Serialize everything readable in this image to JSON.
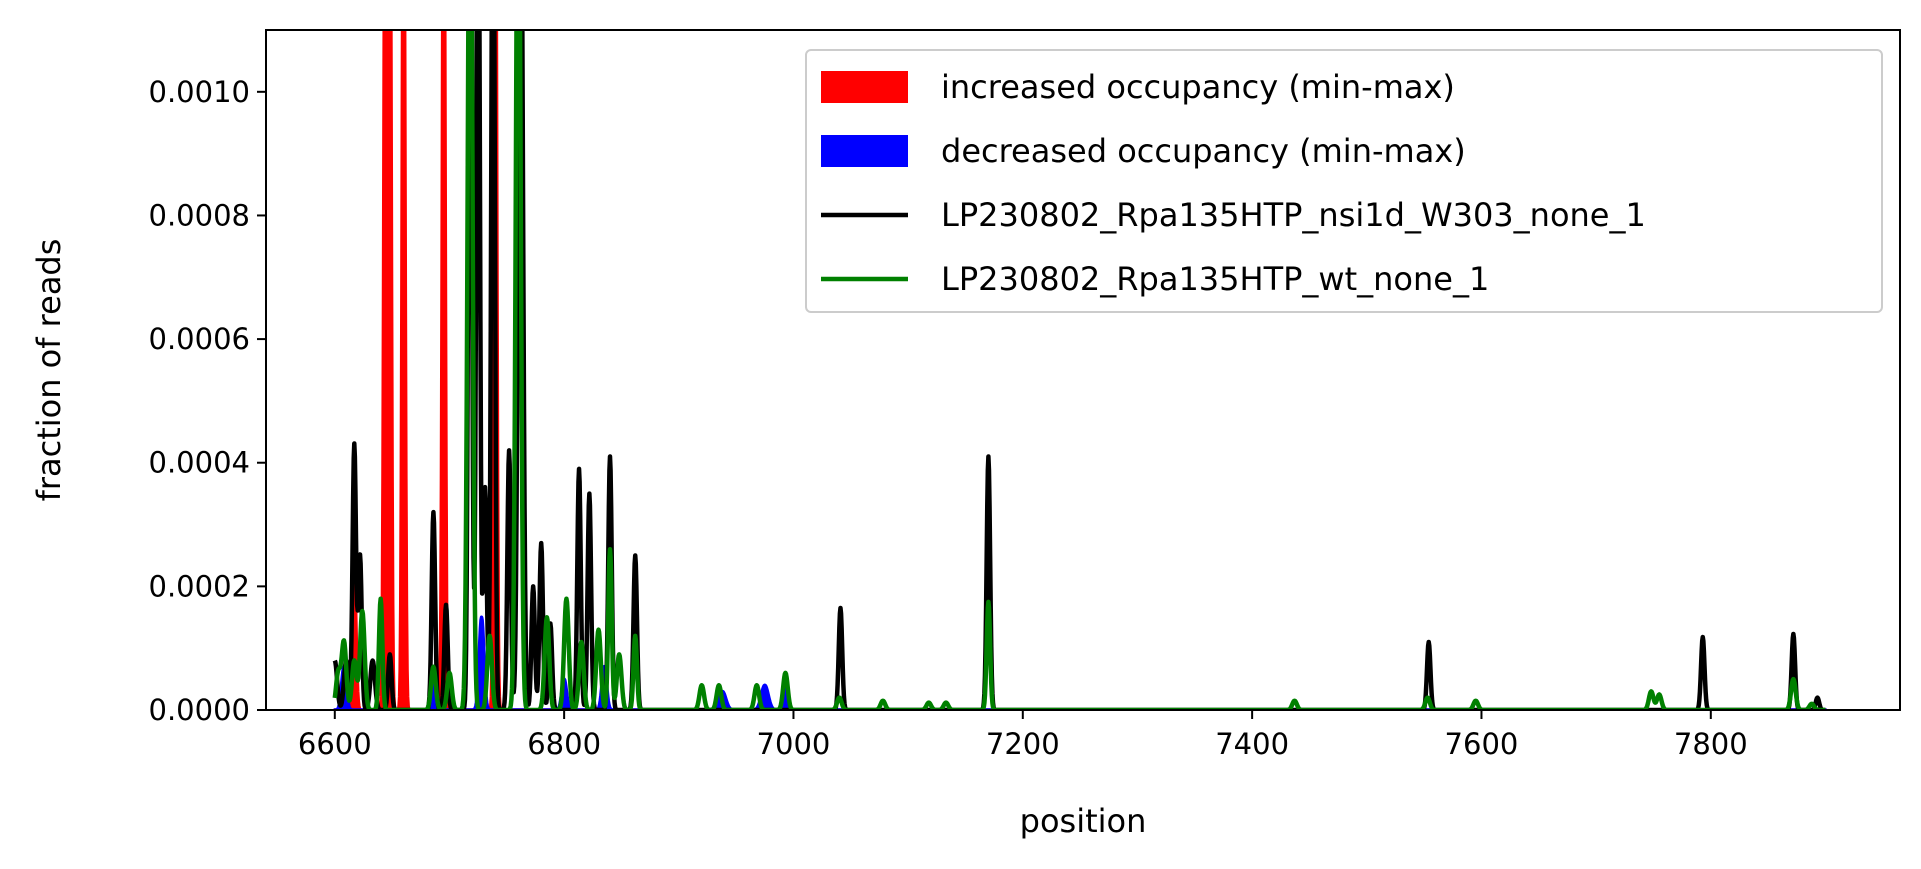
{
  "chart_data": {
    "type": "line",
    "title": "",
    "xlabel": "position",
    "ylabel": "fraction of reads",
    "xlim": [
      6540,
      7965
    ],
    "ylim": [
      0,
      0.0011
    ],
    "x_ticks": [
      6600,
      6800,
      7000,
      7200,
      7400,
      7600,
      7800
    ],
    "x_tick_labels": [
      "6600",
      "6800",
      "7000",
      "7200",
      "7400",
      "7600",
      "7800"
    ],
    "y_ticks": [
      0,
      0.0002,
      0.0004,
      0.0006,
      0.0008,
      0.001
    ],
    "y_tick_labels": [
      "0.0000",
      "0.0002",
      "0.0004",
      "0.0006",
      "0.0008",
      "0.0010"
    ],
    "grid": false,
    "legend_position": "top-right",
    "baseline": {
      "x_start": 6600,
      "x_end": 7900
    },
    "series": [
      {
        "name": "increased occupancy (min-max)",
        "kind": "band",
        "color": "#ff0000",
        "peaks": [
          {
            "x": 6617,
            "y": 0.00022,
            "w": 1.5
          },
          {
            "x": 6644,
            "y": 0.0015,
            "w": 1.2
          },
          {
            "x": 6648,
            "y": 0.0015,
            "w": 1.2
          },
          {
            "x": 6660,
            "y": 0.0015,
            "w": 1.2
          },
          {
            "x": 6695,
            "y": 0.0015,
            "w": 1.2
          },
          {
            "x": 6740,
            "y": 0.0015,
            "w": 1.2
          }
        ]
      },
      {
        "name": "decreased occupancy (min-max)",
        "kind": "band",
        "color": "#0000ff",
        "peaks": [
          {
            "x": 6608,
            "y": 7e-05,
            "w": 2
          },
          {
            "x": 6686,
            "y": 5e-05,
            "w": 2
          },
          {
            "x": 6728,
            "y": 0.00015,
            "w": 2
          },
          {
            "x": 6800,
            "y": 5e-05,
            "w": 2
          },
          {
            "x": 6835,
            "y": 7e-05,
            "w": 2
          },
          {
            "x": 6938,
            "y": 3e-05,
            "w": 3
          },
          {
            "x": 6975,
            "y": 4e-05,
            "w": 3
          },
          {
            "x": 6993,
            "y": 5e-05,
            "w": 2
          }
        ]
      },
      {
        "name": "LP230802_Rpa135HTP_nsi1d_W303_none_1",
        "kind": "line",
        "color": "#000000",
        "peaks": [
          {
            "x": 6600,
            "y": 8e-05,
            "w": 2
          },
          {
            "x": 6610,
            "y": 8e-05,
            "w": 2
          },
          {
            "x": 6617,
            "y": 0.00043,
            "w": 1.5
          },
          {
            "x": 6622,
            "y": 0.00025,
            "w": 1.5
          },
          {
            "x": 6633,
            "y": 8e-05,
            "w": 2
          },
          {
            "x": 6648,
            "y": 9e-05,
            "w": 1.5
          },
          {
            "x": 6686,
            "y": 0.00032,
            "w": 1.5
          },
          {
            "x": 6697,
            "y": 0.00017,
            "w": 1.5
          },
          {
            "x": 6718,
            "y": 0.0015,
            "w": 1.5
          },
          {
            "x": 6725,
            "y": 0.0015,
            "w": 1.5
          },
          {
            "x": 6731,
            "y": 0.00036,
            "w": 1.5
          },
          {
            "x": 6738,
            "y": 0.0015,
            "w": 1.5
          },
          {
            "x": 6752,
            "y": 0.00042,
            "w": 1.5
          },
          {
            "x": 6762,
            "y": 0.0015,
            "w": 2
          },
          {
            "x": 6773,
            "y": 0.0002,
            "w": 1.5
          },
          {
            "x": 6780,
            "y": 0.00027,
            "w": 1.5
          },
          {
            "x": 6788,
            "y": 0.00014,
            "w": 1.5
          },
          {
            "x": 6813,
            "y": 0.00039,
            "w": 1.5
          },
          {
            "x": 6822,
            "y": 0.00035,
            "w": 1.5
          },
          {
            "x": 6840,
            "y": 0.00041,
            "w": 1.5
          },
          {
            "x": 6862,
            "y": 0.00025,
            "w": 1.5
          },
          {
            "x": 7041,
            "y": 0.000165,
            "w": 1.5
          },
          {
            "x": 7170,
            "y": 0.00041,
            "w": 1.5
          },
          {
            "x": 7554,
            "y": 0.00011,
            "w": 1.5
          },
          {
            "x": 7793,
            "y": 0.000118,
            "w": 1.5
          },
          {
            "x": 7872,
            "y": 0.000123,
            "w": 1.5
          },
          {
            "x": 7893,
            "y": 2e-05,
            "w": 1.5
          }
        ]
      },
      {
        "name": "LP230802_Rpa135HTP_wt_none_1",
        "kind": "line",
        "color": "#008000",
        "peaks": [
          {
            "x": 6603,
            "y": 6e-05,
            "w": 2
          },
          {
            "x": 6608,
            "y": 0.00011,
            "w": 2
          },
          {
            "x": 6617,
            "y": 8e-05,
            "w": 2
          },
          {
            "x": 6624,
            "y": 0.00016,
            "w": 2
          },
          {
            "x": 6640,
            "y": 0.00018,
            "w": 1.5
          },
          {
            "x": 6686,
            "y": 7e-05,
            "w": 2
          },
          {
            "x": 6700,
            "y": 6e-05,
            "w": 2
          },
          {
            "x": 6718,
            "y": 0.0015,
            "w": 2
          },
          {
            "x": 6735,
            "y": 0.00012,
            "w": 2
          },
          {
            "x": 6760,
            "y": 0.0015,
            "w": 2
          },
          {
            "x": 6785,
            "y": 0.00015,
            "w": 2
          },
          {
            "x": 6802,
            "y": 0.00018,
            "w": 2
          },
          {
            "x": 6815,
            "y": 0.00011,
            "w": 2
          },
          {
            "x": 6830,
            "y": 0.00013,
            "w": 2
          },
          {
            "x": 6840,
            "y": 0.00026,
            "w": 1.5
          },
          {
            "x": 6848,
            "y": 9e-05,
            "w": 2
          },
          {
            "x": 6862,
            "y": 0.00012,
            "w": 1.5
          },
          {
            "x": 6920,
            "y": 4e-05,
            "w": 2
          },
          {
            "x": 6935,
            "y": 4e-05,
            "w": 2
          },
          {
            "x": 6968,
            "y": 4e-05,
            "w": 2
          },
          {
            "x": 6993,
            "y": 6e-05,
            "w": 2
          },
          {
            "x": 7040,
            "y": 2e-05,
            "w": 2
          },
          {
            "x": 7078,
            "y": 1.5e-05,
            "w": 2
          },
          {
            "x": 7118,
            "y": 1.2e-05,
            "w": 2
          },
          {
            "x": 7133,
            "y": 1.2e-05,
            "w": 2
          },
          {
            "x": 7170,
            "y": 0.000175,
            "w": 1.5
          },
          {
            "x": 7437,
            "y": 1.5e-05,
            "w": 2
          },
          {
            "x": 7553,
            "y": 2e-05,
            "w": 2
          },
          {
            "x": 7595,
            "y": 1.5e-05,
            "w": 2
          },
          {
            "x": 7748,
            "y": 3e-05,
            "w": 2
          },
          {
            "x": 7755,
            "y": 2.5e-05,
            "w": 2
          },
          {
            "x": 7872,
            "y": 5e-05,
            "w": 2
          },
          {
            "x": 7888,
            "y": 1e-05,
            "w": 2
          }
        ]
      }
    ]
  }
}
